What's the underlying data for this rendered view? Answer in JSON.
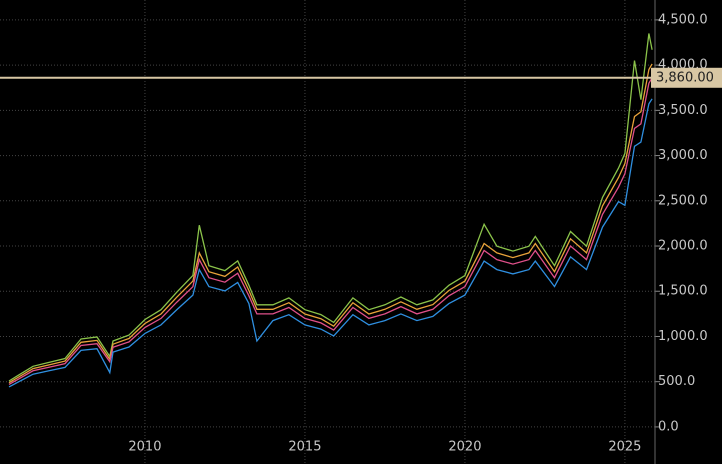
{
  "chart_data": {
    "type": "line",
    "x": [
      2005.75,
      2006.0,
      2006.5,
      2007.0,
      2007.5,
      2008.0,
      2008.5,
      2008.9,
      2009.0,
      2009.5,
      2010.0,
      2010.5,
      2011.0,
      2011.5,
      2011.7,
      2012.0,
      2012.5,
      2012.9,
      2013.25,
      2013.5,
      2014.0,
      2014.5,
      2015.0,
      2015.5,
      2015.9,
      2016.5,
      2017.0,
      2017.5,
      2018.0,
      2018.5,
      2019.0,
      2019.5,
      2020.0,
      2020.6,
      2021.0,
      2021.5,
      2022.0,
      2022.2,
      2022.8,
      2023.3,
      2023.8,
      2024.0,
      2024.3,
      2024.8,
      2025.0,
      2025.3,
      2025.5,
      2025.75,
      2025.85
    ],
    "series": [
      {
        "color": "#8bc34a",
        "values": [
          508,
          562,
          670,
          713,
          756,
          972,
          994,
          778,
          950,
          1015,
          1188,
          1296,
          1490,
          1674,
          2230,
          1782,
          1728,
          1836,
          1566,
          1350,
          1350,
          1426,
          1296,
          1242,
          1156,
          1426,
          1296,
          1350,
          1436,
          1350,
          1404,
          1566,
          1674,
          2240,
          1998,
          1944,
          1998,
          2106,
          1782,
          2160,
          1998,
          2214,
          2538,
          2862,
          3024,
          4050,
          3618,
          4350,
          4169
        ]
      },
      {
        "color": "#e8a23a",
        "values": [
          489,
          541,
          645,
          686,
          728,
          936,
          957,
          749,
          915,
          978,
          1144,
          1248,
          1435,
          1612,
          1924,
          1716,
          1664,
          1768,
          1508,
          1300,
          1300,
          1373,
          1248,
          1196,
          1113,
          1373,
          1248,
          1300,
          1383,
          1300,
          1352,
          1508,
          1612,
          2028,
          1924,
          1872,
          1924,
          2028,
          1716,
          2080,
          1924,
          2132,
          2444,
          2756,
          2912,
          3432,
          3484,
          3952,
          4014
        ]
      },
      {
        "color": "#e0508a",
        "values": [
          470,
          520,
          620,
          660,
          700,
          900,
          920,
          720,
          880,
          940,
          1100,
          1200,
          1380,
          1550,
          1850,
          1650,
          1600,
          1700,
          1450,
          1250,
          1250,
          1320,
          1200,
          1150,
          1070,
          1320,
          1200,
          1250,
          1330,
          1250,
          1300,
          1450,
          1550,
          1950,
          1850,
          1800,
          1850,
          1950,
          1650,
          2000,
          1850,
          2050,
          2350,
          2650,
          2800,
          3300,
          3350,
          3800,
          3860
        ]
      },
      {
        "color": "#2f8fe0",
        "values": [
          442,
          489,
          583,
          620,
          658,
          846,
          865,
          600,
          827,
          884,
          1034,
          1128,
          1297,
          1457,
          1739,
          1551,
          1504,
          1598,
          1363,
          950,
          1175,
          1241,
          1128,
          1081,
          1006,
          1241,
          1128,
          1175,
          1250,
          1175,
          1222,
          1363,
          1457,
          1833,
          1739,
          1692,
          1739,
          1833,
          1551,
          1880,
          1739,
          1927,
          2209,
          2491,
          2450,
          3102,
          3149,
          3572,
          3628
        ]
      }
    ],
    "xlim": [
      2005.47,
      2025.94
    ],
    "xticks": [
      2010,
      2015,
      2020,
      2025
    ],
    "ylim": [
      -410,
      4720
    ],
    "yticks": [
      {
        "value": 0,
        "label": "0.0"
      },
      {
        "value": 500,
        "label": "500.0"
      },
      {
        "value": 1000,
        "label": "1,000.0"
      },
      {
        "value": 1500,
        "label": "1,500.0"
      },
      {
        "value": 2000,
        "label": "2,000.0"
      },
      {
        "value": 2500,
        "label": "2,500.0"
      },
      {
        "value": 3000,
        "label": "3,000.0"
      },
      {
        "value": 3500,
        "label": "3,500.0"
      },
      {
        "value": 4000,
        "label": "4,000.0"
      },
      {
        "value": 4500,
        "label": "4,500.0"
      }
    ],
    "grid": true,
    "reference_line": {
      "value": 3860,
      "label": "3,860.00",
      "color": "#d8c7a4"
    }
  }
}
